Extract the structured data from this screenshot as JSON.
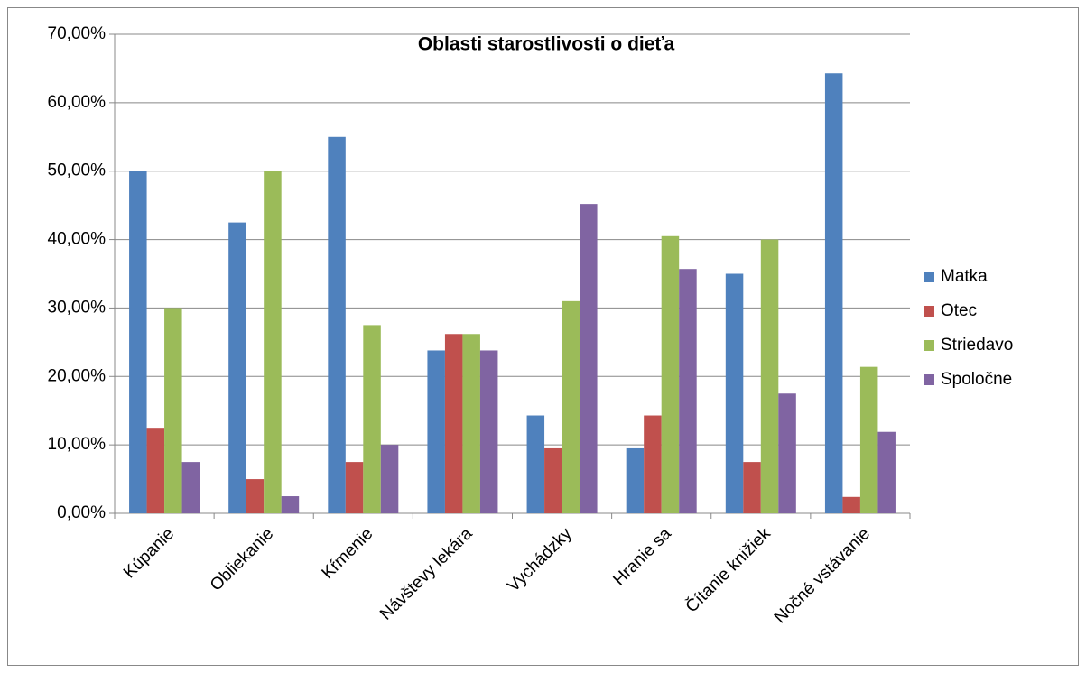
{
  "chart_data": {
    "type": "bar",
    "title": "Oblasti starostlivosti o dieťa",
    "categories": [
      "Kúpanie",
      "Obliekanie",
      "Kŕmenie",
      "Návštevy lekára",
      "Vychádzky",
      "Hranie sa",
      "Čítanie knižiek",
      "Nočné vstávanie"
    ],
    "series": [
      {
        "name": "Matka",
        "color": "#4f81bd",
        "values": [
          50,
          42.5,
          55,
          23.8,
          14.3,
          9.5,
          35,
          64.3
        ]
      },
      {
        "name": "Otec",
        "color": "#c0504d",
        "values": [
          12.5,
          5,
          7.5,
          26.2,
          9.5,
          14.3,
          7.5,
          2.4
        ]
      },
      {
        "name": "Striedavo",
        "color": "#9bbb59",
        "values": [
          30,
          50,
          27.5,
          26.2,
          31,
          40.5,
          40,
          21.4
        ]
      },
      {
        "name": "Spoločne",
        "color": "#8064a2",
        "values": [
          7.5,
          2.5,
          10,
          23.8,
          45.2,
          35.7,
          17.5,
          11.9
        ]
      }
    ],
    "ylim": [
      0,
      70
    ],
    "yticks": [
      {
        "value": 0,
        "label": "0,00%"
      },
      {
        "value": 10,
        "label": "10,00%"
      },
      {
        "value": 20,
        "label": "20,00%"
      },
      {
        "value": 30,
        "label": "30,00%"
      },
      {
        "value": 40,
        "label": "40,00%"
      },
      {
        "value": 50,
        "label": "50,00%"
      },
      {
        "value": 60,
        "label": "60,00%"
      },
      {
        "value": 70,
        "label": "70,00%"
      }
    ],
    "grid": true,
    "legend": "right"
  }
}
